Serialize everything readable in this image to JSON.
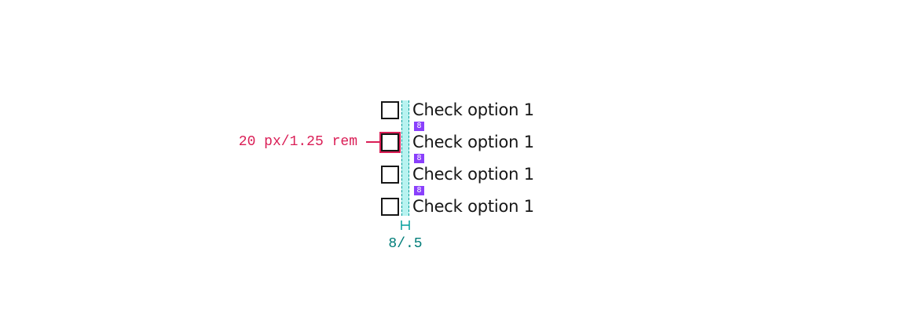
{
  "checkboxes": [
    {
      "label": "Check option 1",
      "checked": false
    },
    {
      "label": "Check option 1",
      "checked": false
    },
    {
      "label": "Check option 1",
      "checked": false
    },
    {
      "label": "Check option 1",
      "checked": false
    }
  ],
  "annotations": {
    "checkbox_size": "20 px/1.25 rem",
    "gap_spacing": "8/.5",
    "vertical_spacing_badges": [
      "8",
      "8",
      "8"
    ]
  },
  "colors": {
    "size_annotation": "#da1e56",
    "spacing_annotation": "#009d9a",
    "spacing_badge": "#8a3ffc"
  }
}
